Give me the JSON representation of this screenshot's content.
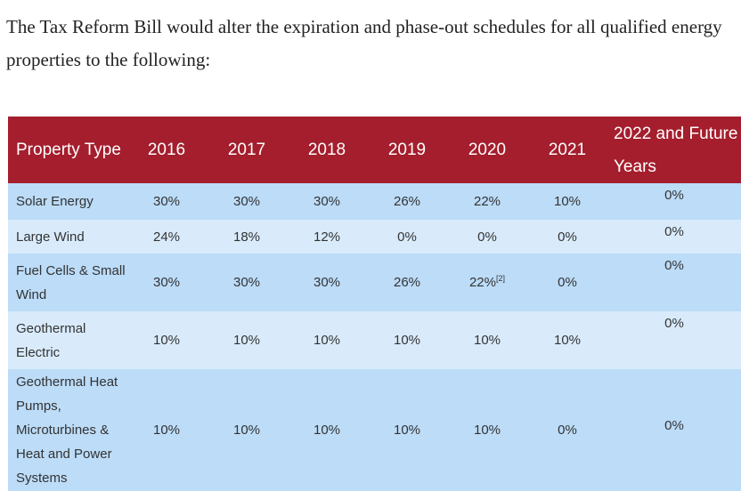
{
  "intro": "The Tax Reform Bill would alter the expiration and phase-out schedules for all qualified energy properties to the following:",
  "table": {
    "headers": [
      "Property Type",
      "2016",
      "2017",
      "2018",
      "2019",
      "2020",
      "2021",
      "2022 and Future Years"
    ],
    "rows": [
      {
        "label": "Solar Energy",
        "values": [
          "30%",
          "30%",
          "30%",
          "26%",
          "22%",
          "10%"
        ],
        "future": "0%"
      },
      {
        "label": "Large Wind",
        "values": [
          "24%",
          "18%",
          "12%",
          "0%",
          "0%",
          "0%"
        ],
        "future": "0%"
      },
      {
        "label": "Fuel Cells & Small Wind",
        "values": [
          "30%",
          "30%",
          "30%",
          "26%",
          "22%",
          "0%"
        ],
        "note": "[2]",
        "future": "0%"
      },
      {
        "label": "Geothermal Electric",
        "values": [
          "10%",
          "10%",
          "10%",
          "10%",
          "10%",
          "10%"
        ],
        "future": "0%"
      },
      {
        "label": "Geothermal Heat Pumps, Microturbines & Heat and Power Systems",
        "values": [
          "10%",
          "10%",
          "10%",
          "10%",
          "10%",
          "0%"
        ],
        "future": "0%"
      }
    ]
  },
  "colors": {
    "header_bg": "#a51e2d",
    "row_dark": "#bcdcf8",
    "row_light": "#d9ebfb",
    "text": "#333333"
  }
}
